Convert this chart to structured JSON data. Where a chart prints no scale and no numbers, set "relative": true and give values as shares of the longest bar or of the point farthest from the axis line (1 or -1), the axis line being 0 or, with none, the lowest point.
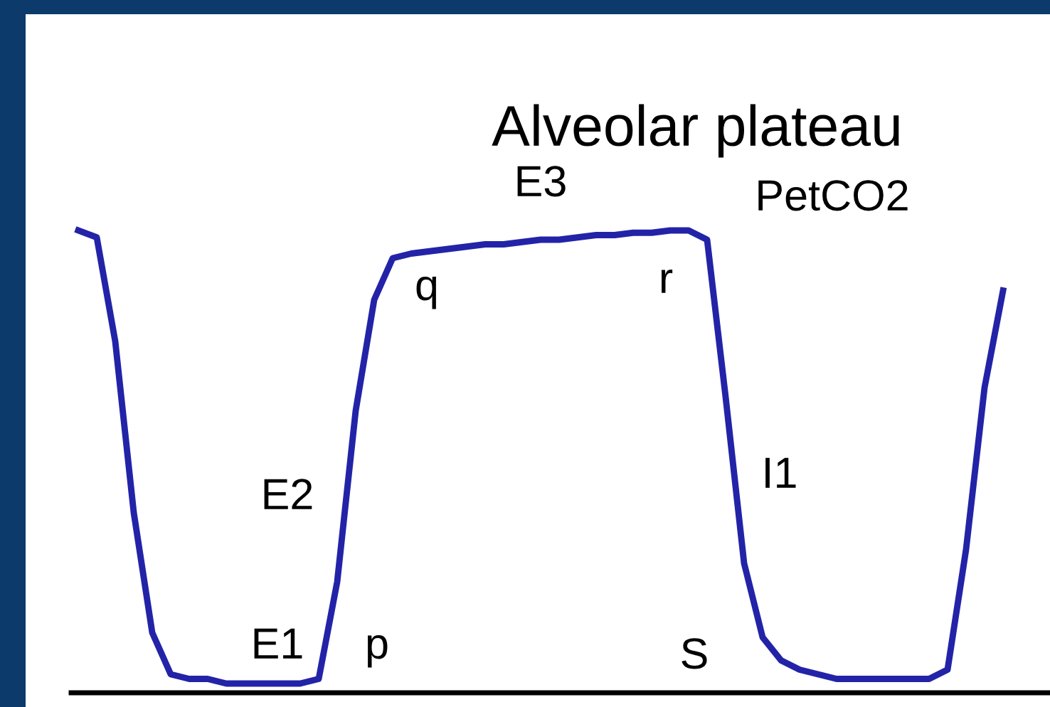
{
  "chart_data": {
    "type": "line",
    "relative": true,
    "categories": [
      null,
      null,
      null,
      null,
      null,
      null,
      null,
      null,
      null,
      null,
      null,
      null,
      null,
      null,
      null,
      null,
      null,
      null,
      null,
      null,
      null,
      null,
      null,
      null,
      null,
      null,
      null,
      null,
      null,
      null,
      null,
      null,
      null,
      null,
      null,
      null,
      null,
      null,
      null,
      null,
      null,
      null,
      null,
      null,
      null,
      null,
      null,
      null,
      null,
      null,
      null
    ],
    "series": [
      {
        "color": "#2323a8",
        "values": [
          1.0,
          0.985,
          0.76,
          0.39,
          0.13,
          0.04,
          0.03,
          0.03,
          0.02,
          0.02,
          0.02,
          0.02,
          0.02,
          0.03,
          0.24,
          0.61,
          0.85,
          0.94,
          0.95,
          0.955,
          0.96,
          0.965,
          0.97,
          0.97,
          0.975,
          0.98,
          0.98,
          0.985,
          0.99,
          0.99,
          0.995,
          0.995,
          1.0,
          1.0,
          0.98,
          0.64,
          0.28,
          0.12,
          0.07,
          0.05,
          0.04,
          0.03,
          0.03,
          0.03,
          0.03,
          0.03,
          0.03,
          0.05,
          0.31,
          0.66,
          0.87
        ]
      }
    ],
    "annotations": [
      "Alveolar plateau",
      "E3",
      "PetCO2",
      "q",
      "r",
      "E2",
      "I1",
      "E1",
      "p",
      "S"
    ],
    "marker": "none",
    "line_style": "solid"
  }
}
